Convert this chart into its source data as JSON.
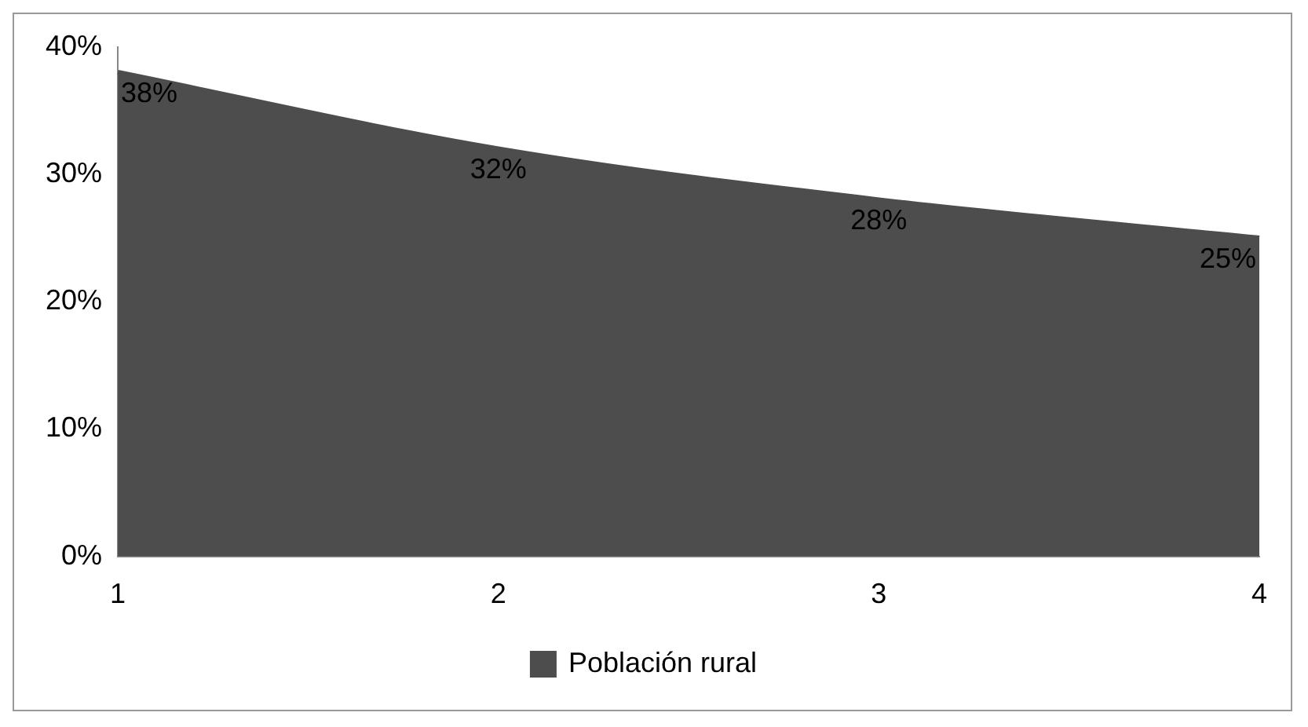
{
  "chart_data": {
    "type": "area",
    "categories": [
      "1",
      "2",
      "3",
      "4"
    ],
    "series": [
      {
        "name": "Población rural",
        "color": "#4d4d4d",
        "values": [
          38,
          32,
          28,
          25
        ],
        "value_labels": [
          "38%",
          "32%",
          "28%",
          "25%"
        ]
      }
    ],
    "ylim": [
      0,
      40
    ],
    "yticks": [
      {
        "value": 0,
        "label": "0%"
      },
      {
        "value": 10,
        "label": "10%"
      },
      {
        "value": 20,
        "label": "20%"
      },
      {
        "value": 30,
        "label": "30%"
      },
      {
        "value": 40,
        "label": "40%"
      }
    ],
    "grid": false,
    "legend": "bottom"
  }
}
